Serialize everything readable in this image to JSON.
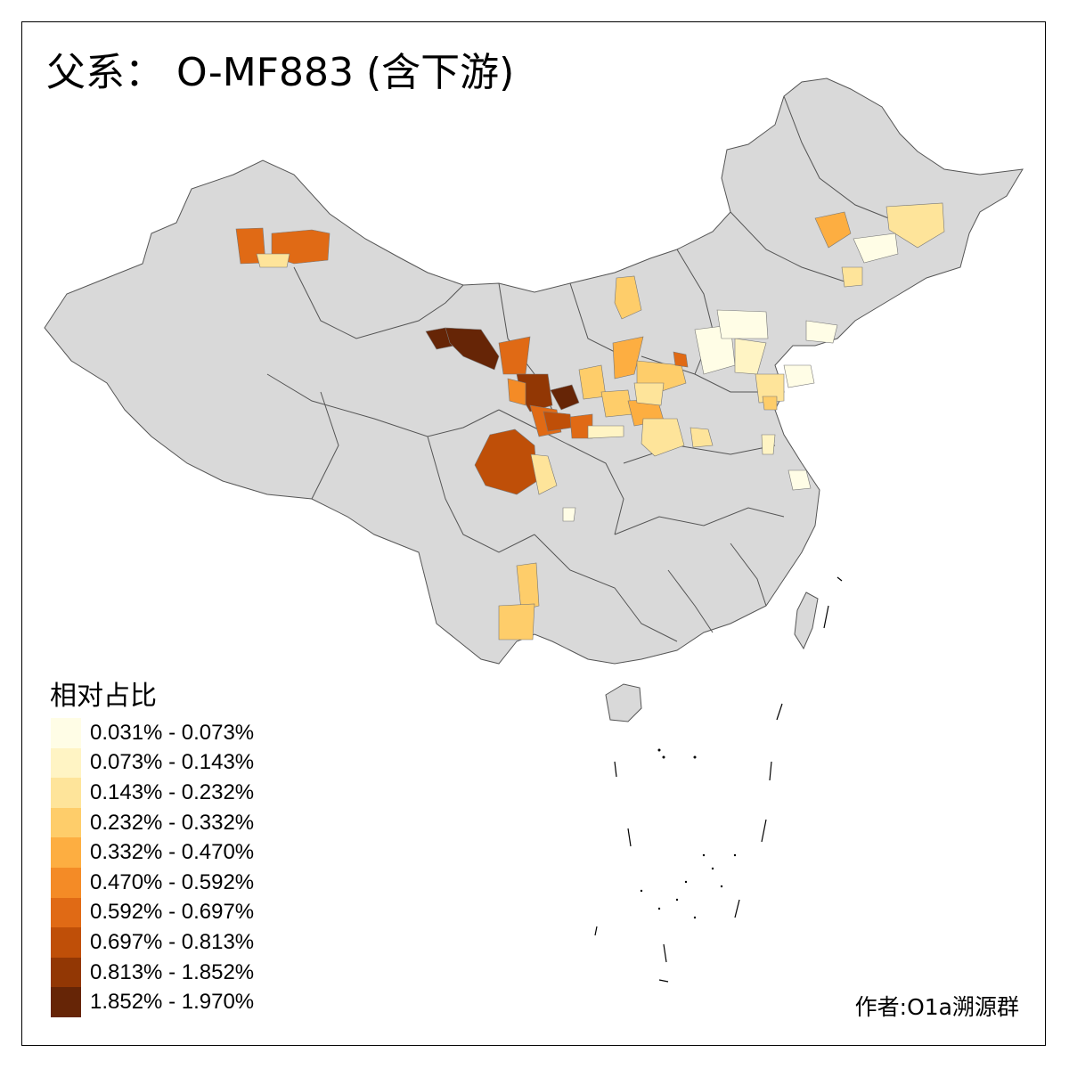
{
  "title": "父系： O-MF883 (含下游)",
  "legend": {
    "title": "相对占比",
    "items": [
      {
        "label": "0.031% - 0.073%",
        "color": "#fffde6"
      },
      {
        "label": "0.073% - 0.143%",
        "color": "#fff4c4"
      },
      {
        "label": "0.143% - 0.232%",
        "color": "#fee49a"
      },
      {
        "label": "0.232% - 0.332%",
        "color": "#fecd6a"
      },
      {
        "label": "0.332% - 0.470%",
        "color": "#fdae41"
      },
      {
        "label": "0.470% - 0.592%",
        "color": "#f48b26"
      },
      {
        "label": "0.592% - 0.697%",
        "color": "#e06a15"
      },
      {
        "label": "0.697% - 0.813%",
        "color": "#bf4f08"
      },
      {
        "label": "0.813% - 1.852%",
        "color": "#923704"
      },
      {
        "label": "1.852% - 1.970%",
        "color": "#662506"
      }
    ]
  },
  "credit": "作者:O1a溯源群",
  "colors": {
    "base_land": "#d9d9d9",
    "border": "#555555"
  }
}
